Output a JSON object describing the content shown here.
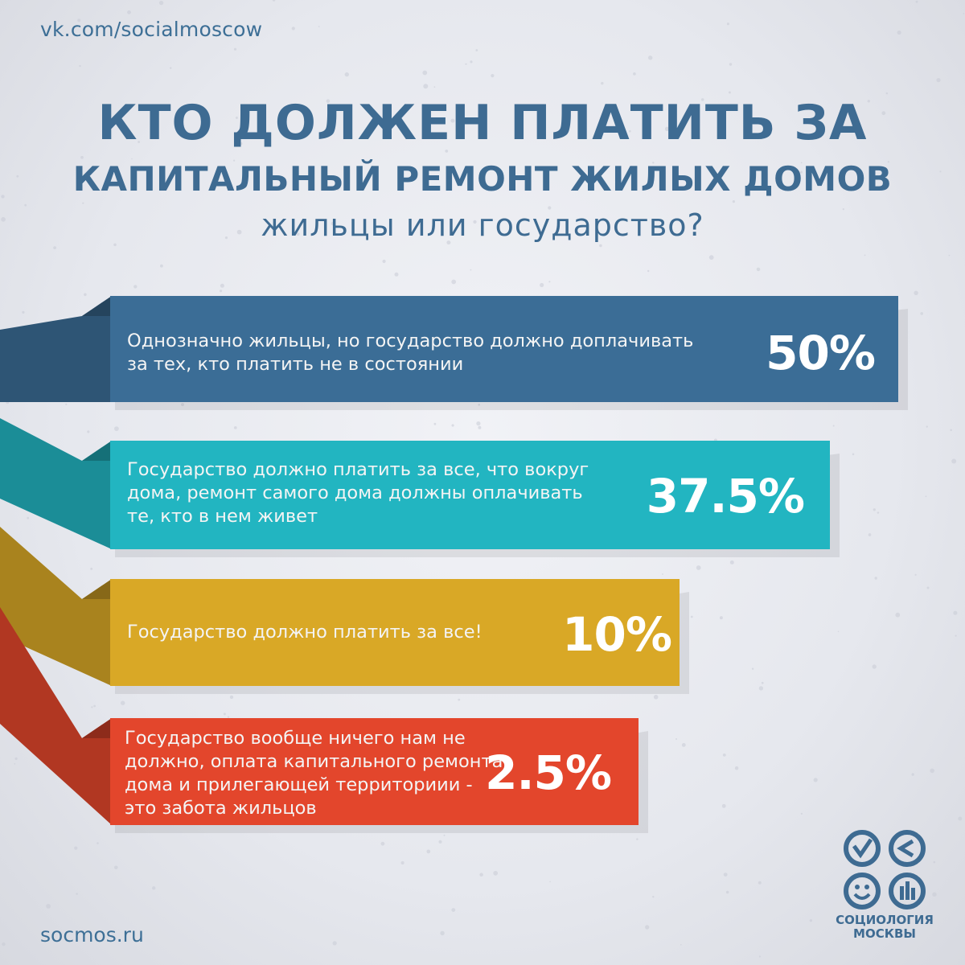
{
  "header": {
    "vk_link": "vk.com/socialmoscow",
    "title_line1": "КТО ДОЛЖЕН ПЛАТИТЬ ЗА",
    "title_line2": "КАПИТАЛЬНЫЙ РЕМОНТ ЖИЛЫХ ДОМОВ",
    "subtitle": "жильцы или государство?"
  },
  "footer": {
    "site_link": "socmos.ru",
    "logo_line1": "СОЦИОЛОГИЯ",
    "logo_line2": "МОСКВЫ"
  },
  "icons": [
    "ribbon-fold-icon",
    "sociology-logo-icon"
  ],
  "colors": {
    "bar1": "#3b6d96",
    "bar2": "#22b5c1",
    "bar3": "#d9a826",
    "bar4": "#e3462c",
    "title": "#3e6b92"
  },
  "chart_data": {
    "type": "bar",
    "orientation": "horizontal",
    "title": "КТО ДОЛЖЕН ПЛАТИТЬ ЗА КАПИТАЛЬНЫЙ РЕМОНТ ЖИЛЫХ ДОМОВ",
    "subtitle": "жильцы или государство?",
    "unit": "%",
    "categories": [
      "Однозначно жильцы, но государство должно доплачивать за тех, кто платить не в состоянии",
      "Государство должно платить за все, что вокруг дома, ремонт самого дома должны оплачивать те, кто в нем живет",
      "Государство должно платить за все!",
      "Государство вообще ничего нам не должно, оплата капитального ремонта дома и прилегающей территориии - это забота жильцов"
    ],
    "values": [
      50,
      37.5,
      10,
      2.5
    ],
    "value_labels": [
      "50%",
      "37.5%",
      "10%",
      "2.5%"
    ],
    "label_lines": [
      [
        "Однозначно жильцы, но государство должно доплачивать",
        "за тех, кто платить не в состоянии"
      ],
      [
        "Государство должно платить за все, что вокруг",
        "дома, ремонт самого дома должны оплачивать",
        "те, кто в нем живет"
      ],
      [
        "Государство должно платить за все!"
      ],
      [
        "Государство вообще ничего нам не",
        "должно, оплата капитального ремонта",
        "дома и прилегающей территориии -",
        "это забота жильцов"
      ]
    ],
    "grid": false,
    "legend": "none"
  }
}
